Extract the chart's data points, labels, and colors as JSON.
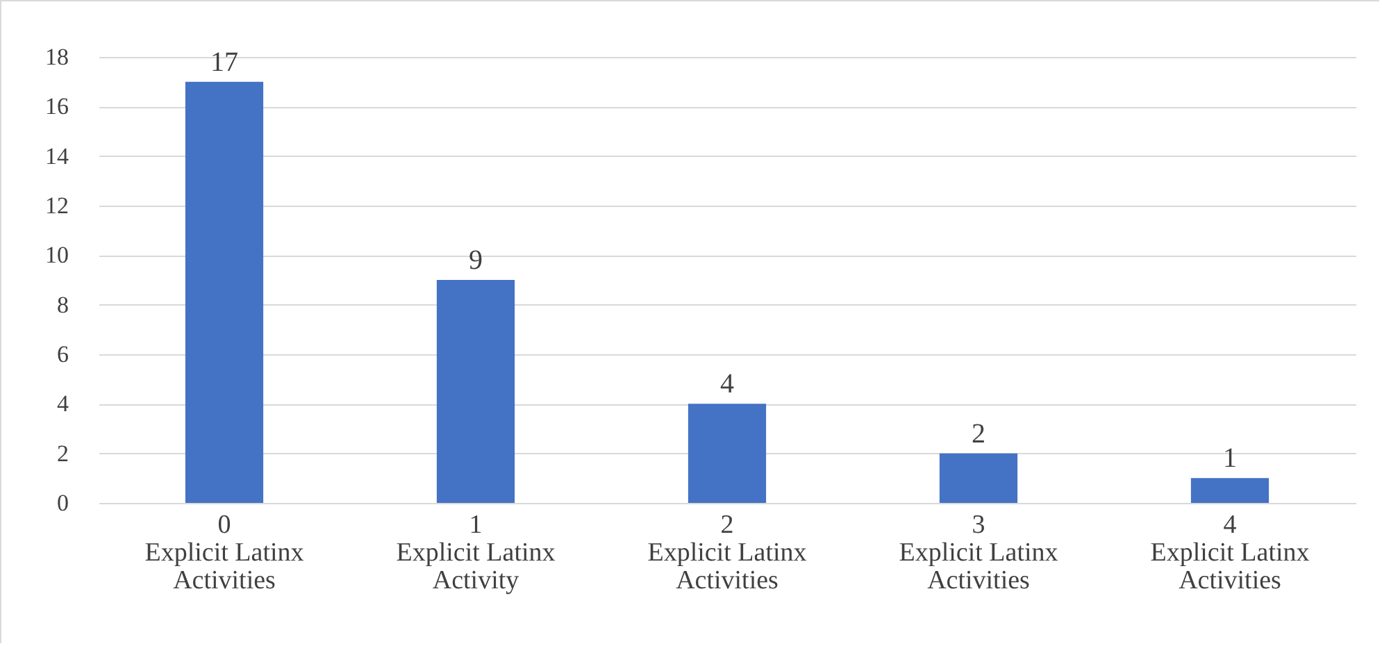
{
  "chart_data": {
    "type": "bar",
    "categories": [
      "0\nExplicit Latinx\nActivities",
      "1\nExplicit Latinx\nActivity",
      "2\nExplicit Latinx\nActivities",
      "3\nExplicit Latinx\nActivities",
      "4\nExplicit Latinx\nActivities"
    ],
    "values": [
      17,
      9,
      4,
      2,
      1
    ],
    "color": "#4472c4",
    "ylim": [
      0,
      18
    ],
    "yticks": [
      0,
      2,
      4,
      6,
      8,
      10,
      12,
      14,
      16,
      18
    ],
    "grid": "y",
    "data_labels": true
  }
}
